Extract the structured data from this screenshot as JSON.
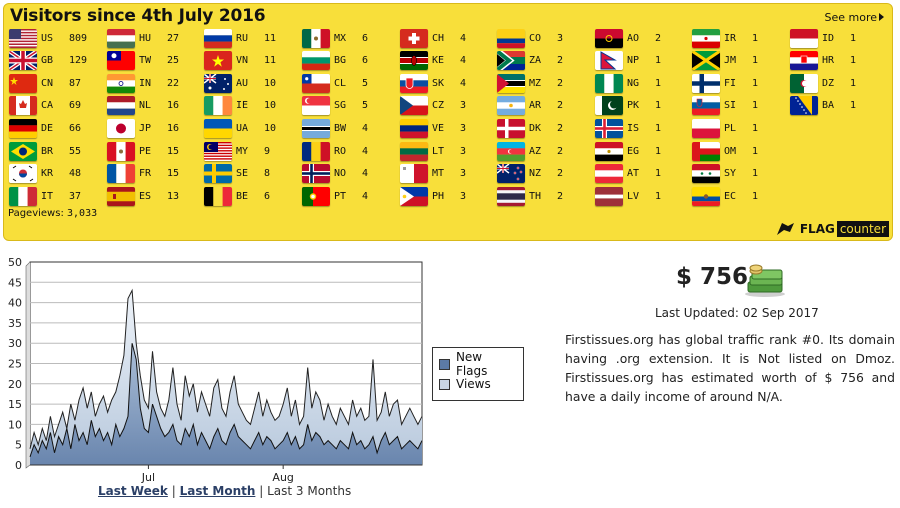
{
  "panel": {
    "title": "Visitors since 4th July 2016",
    "see_more": "See more",
    "pageviews_label": "Pageviews:",
    "pageviews": "3,033",
    "brand_flag": "FLAG",
    "brand_counter": "counter"
  },
  "countries": [
    {
      "code": "US",
      "count": "809"
    },
    {
      "code": "GB",
      "count": "129"
    },
    {
      "code": "CN",
      "count": "87"
    },
    {
      "code": "CA",
      "count": "69"
    },
    {
      "code": "DE",
      "count": "66"
    },
    {
      "code": "BR",
      "count": "55"
    },
    {
      "code": "KR",
      "count": "48"
    },
    {
      "code": "IT",
      "count": "37"
    },
    {
      "code": "HU",
      "count": "27"
    },
    {
      "code": "TW",
      "count": "25"
    },
    {
      "code": "IN",
      "count": "22"
    },
    {
      "code": "NL",
      "count": "16"
    },
    {
      "code": "JP",
      "count": "16"
    },
    {
      "code": "PE",
      "count": "15"
    },
    {
      "code": "FR",
      "count": "15"
    },
    {
      "code": "ES",
      "count": "13"
    },
    {
      "code": "RU",
      "count": "11"
    },
    {
      "code": "VN",
      "count": "11"
    },
    {
      "code": "AU",
      "count": "10"
    },
    {
      "code": "IE",
      "count": "10"
    },
    {
      "code": "UA",
      "count": "10"
    },
    {
      "code": "MY",
      "count": "9"
    },
    {
      "code": "SE",
      "count": "8"
    },
    {
      "code": "BE",
      "count": "6"
    },
    {
      "code": "MX",
      "count": "6"
    },
    {
      "code": "BG",
      "count": "6"
    },
    {
      "code": "CL",
      "count": "5"
    },
    {
      "code": "SG",
      "count": "5"
    },
    {
      "code": "BW",
      "count": "4"
    },
    {
      "code": "RO",
      "count": "4"
    },
    {
      "code": "NO",
      "count": "4"
    },
    {
      "code": "PT",
      "count": "4"
    },
    {
      "code": "CH",
      "count": "4"
    },
    {
      "code": "KE",
      "count": "4"
    },
    {
      "code": "SK",
      "count": "4"
    },
    {
      "code": "CZ",
      "count": "3"
    },
    {
      "code": "VE",
      "count": "3"
    },
    {
      "code": "LT",
      "count": "3"
    },
    {
      "code": "MT",
      "count": "3"
    },
    {
      "code": "PH",
      "count": "3"
    },
    {
      "code": "CO",
      "count": "3"
    },
    {
      "code": "ZA",
      "count": "2"
    },
    {
      "code": "MZ",
      "count": "2"
    },
    {
      "code": "AR",
      "count": "2"
    },
    {
      "code": "DK",
      "count": "2"
    },
    {
      "code": "AZ",
      "count": "2"
    },
    {
      "code": "NZ",
      "count": "2"
    },
    {
      "code": "TH",
      "count": "2"
    },
    {
      "code": "AO",
      "count": "2"
    },
    {
      "code": "NP",
      "count": "1"
    },
    {
      "code": "NG",
      "count": "1"
    },
    {
      "code": "PK",
      "count": "1"
    },
    {
      "code": "IS",
      "count": "1"
    },
    {
      "code": "EG",
      "count": "1"
    },
    {
      "code": "AT",
      "count": "1"
    },
    {
      "code": "LV",
      "count": "1"
    },
    {
      "code": "IR",
      "count": "1"
    },
    {
      "code": "JM",
      "count": "1"
    },
    {
      "code": "FI",
      "count": "1"
    },
    {
      "code": "SI",
      "count": "1"
    },
    {
      "code": "PL",
      "count": "1"
    },
    {
      "code": "OM",
      "count": "1"
    },
    {
      "code": "SY",
      "count": "1"
    },
    {
      "code": "EC",
      "count": "1"
    },
    {
      "code": "ID",
      "count": "1"
    },
    {
      "code": "HR",
      "count": "1"
    },
    {
      "code": "DZ",
      "count": "1"
    },
    {
      "code": "BA",
      "count": "1"
    }
  ],
  "chart_data": {
    "type": "area",
    "xlabel": "",
    "ylabel": "",
    "ylim": [
      0,
      50
    ],
    "yticks": [
      0,
      5,
      10,
      15,
      20,
      25,
      30,
      35,
      40,
      45,
      50
    ],
    "xtick_labels": [
      "Jul",
      "Aug"
    ],
    "xtick_index": [
      29,
      62
    ],
    "grid": true,
    "legend_position": "right",
    "series": [
      {
        "name": "New Flags",
        "color": "#5c7aa6",
        "values": [
          2,
          5,
          3,
          6,
          4,
          8,
          3,
          7,
          5,
          9,
          4,
          10,
          6,
          8,
          5,
          11,
          7,
          9,
          6,
          8,
          5,
          10,
          7,
          9,
          12,
          30,
          26,
          14,
          9,
          8,
          15,
          12,
          9,
          7,
          8,
          10,
          6,
          5,
          9,
          7,
          10,
          5,
          8,
          6,
          4,
          7,
          9,
          6,
          5,
          8,
          10,
          7,
          6,
          5,
          4,
          6,
          8,
          5,
          7,
          6,
          4,
          5,
          6,
          8,
          5,
          7,
          4,
          5,
          10,
          6,
          8,
          7,
          5,
          6,
          5,
          4,
          6,
          5,
          4,
          8,
          5,
          6,
          4,
          5,
          7,
          3,
          6,
          8,
          5,
          6,
          7,
          4,
          5,
          6,
          5,
          4,
          6
        ]
      },
      {
        "name": "Views",
        "color": "#c9d6e6",
        "values": [
          4,
          8,
          5,
          9,
          6,
          12,
          7,
          10,
          13,
          9,
          15,
          11,
          16,
          19,
          14,
          18,
          12,
          15,
          17,
          13,
          16,
          18,
          22,
          27,
          41,
          43,
          30,
          22,
          16,
          14,
          28,
          18,
          14,
          12,
          16,
          24,
          15,
          11,
          22,
          17,
          20,
          13,
          18,
          15,
          12,
          19,
          21,
          14,
          12,
          18,
          22,
          15,
          13,
          11,
          10,
          14,
          18,
          12,
          16,
          13,
          11,
          12,
          15,
          19,
          12,
          16,
          10,
          12,
          24,
          14,
          18,
          16,
          11,
          15,
          12,
          10,
          14,
          12,
          10,
          16,
          12,
          14,
          11,
          12,
          26,
          11,
          13,
          18,
          12,
          15,
          16,
          10,
          12,
          14,
          12,
          10,
          12
        ]
      }
    ]
  },
  "range_links": {
    "week": "Last Week",
    "month": "Last Month",
    "three_months": "Last 3 Months",
    "sep": "|"
  },
  "site": {
    "worth": "$ 756",
    "last_updated": "Last Updated: 02 Sep 2017",
    "description": "Firstissues.org has global traffic rank #0. Its domain having .org extension. It is Not listed on Dmoz. Firstissues.org has estimated worth of $ 756 and have a daily income of around N/A."
  },
  "icons": {
    "see_more": "chevron-right-icon",
    "money": "money-stack-icon",
    "brand": "flag-counter-logo"
  }
}
